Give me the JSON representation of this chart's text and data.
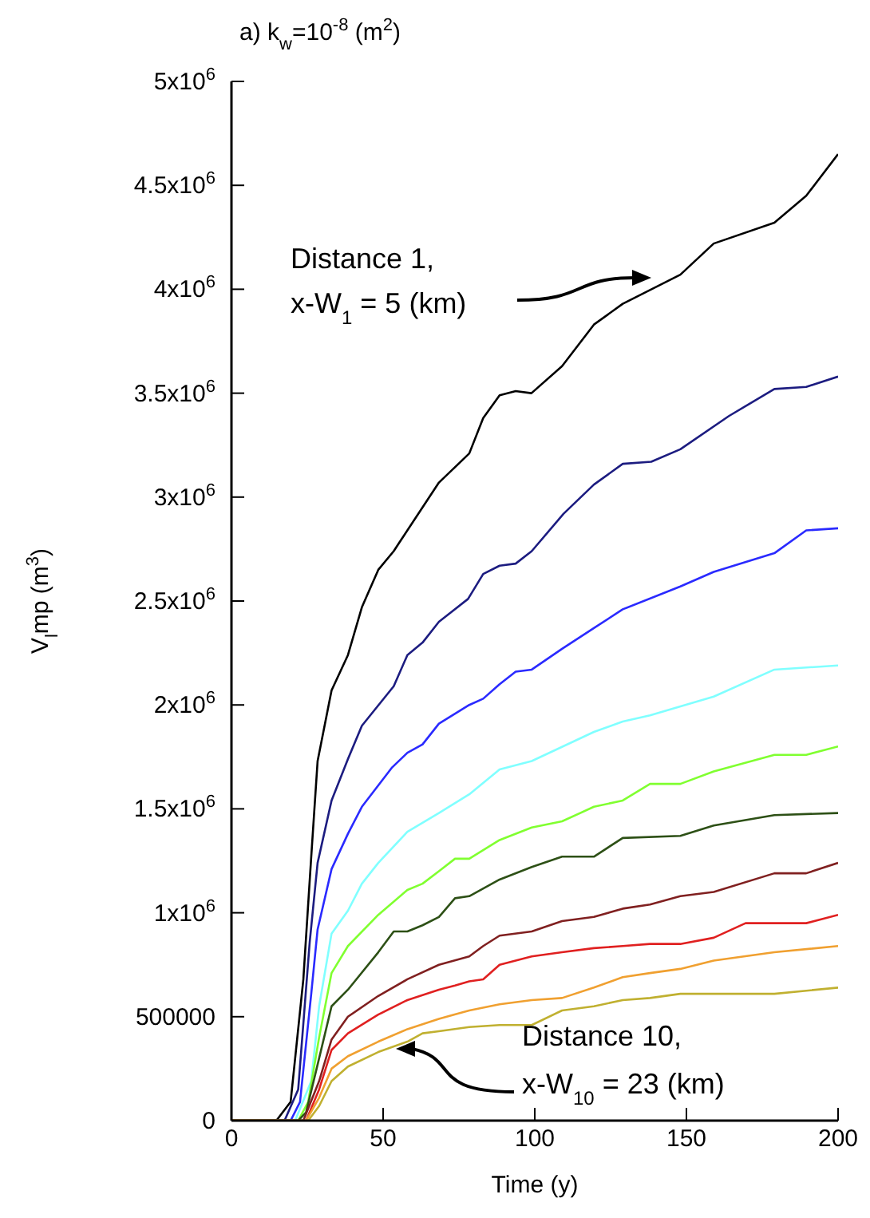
{
  "chart_data": {
    "type": "line",
    "title": "a) k$_{w}$=10$^{-8}$ (m$^{2}$)",
    "xlabel": "Time (y)",
    "ylabel": "V$_{l}$mp (m$^{3}$)",
    "xlim": [
      0,
      200
    ],
    "xticks": [
      0,
      50,
      100,
      150,
      200
    ],
    "ylim": [
      0,
      5000000
    ],
    "yticks": [
      0,
      500000,
      {
        "value": 1000000,
        "label": "1x10$^{6}$"
      },
      {
        "value": 1500000,
        "label": "1.5x10$^{6}$"
      },
      {
        "value": 2000000,
        "label": "2x10$^{6}$"
      },
      {
        "value": 2500000,
        "label": "2.5x10$^{6}$"
      },
      {
        "value": 3000000,
        "label": "3x10$^{6}$"
      },
      {
        "value": 3500000,
        "label": "3.5x10$^{6}$"
      },
      {
        "value": 4000000,
        "label": "4x10$^{6}$"
      },
      {
        "value": 4500000,
        "label": "4.5x10$^{6}$"
      },
      {
        "value": 5000000,
        "label": "5x10$^{6}$"
      }
    ],
    "grid": false,
    "legend": false,
    "marker": "none",
    "line_style": "solid",
    "annotations": [
      "Distance 1,\nx-W$_{1}$ = 5 (km)",
      "Distance 10,\nx-W$_{10}$ = 23 (km)"
    ],
    "series": [
      {
        "color": "#000000",
        "x": [
          0,
          14.8,
          19.5,
          23.7,
          26.3,
          28.4,
          33,
          38.4,
          43,
          48.4,
          53.5,
          55.3,
          68.4,
          78.4,
          83,
          88.4,
          93.7,
          98.9,
          109,
          119.5,
          129,
          148,
          159,
          179,
          189.5,
          200
        ],
        "values": [
          0,
          0,
          90000,
          680000,
          1270000,
          1730000,
          2070000,
          2240000,
          2470000,
          2650000,
          2740000,
          2780000,
          3070000,
          3210000,
          3380000,
          3490000,
          3510000,
          3500000,
          3630000,
          3830000,
          3930000,
          4070000,
          4220000,
          4320000,
          4450000,
          4650000
        ]
      },
      {
        "color": "#1c1c80",
        "x": [
          0,
          17.5,
          22,
          25.8,
          28.4,
          33,
          38.4,
          43,
          53.5,
          58,
          63,
          68.4,
          78,
          83,
          88.4,
          93.7,
          99,
          109.5,
          119.5,
          129,
          138.4,
          148,
          164,
          179,
          189.5,
          200
        ],
        "values": [
          0,
          0,
          150000,
          860000,
          1240000,
          1540000,
          1740000,
          1900000,
          2090000,
          2240000,
          2300000,
          2400000,
          2510000,
          2630000,
          2670000,
          2680000,
          2740000,
          2920000,
          3060000,
          3160000,
          3170000,
          3230000,
          3390000,
          3520000,
          3530000,
          3580000
        ]
      },
      {
        "color": "#2a2aff",
        "x": [
          0,
          19.5,
          22.6,
          26.3,
          28.4,
          33,
          38.4,
          43,
          53,
          58,
          63,
          68.4,
          78.4,
          83,
          88.4,
          93.7,
          99,
          109,
          119.5,
          129,
          148,
          159,
          179,
          189.5,
          200
        ],
        "values": [
          0,
          0,
          90000,
          610000,
          920000,
          1210000,
          1380000,
          1510000,
          1700000,
          1770000,
          1810000,
          1910000,
          2000000,
          2030000,
          2100000,
          2160000,
          2170000,
          2270000,
          2370000,
          2460000,
          2570000,
          2640000,
          2730000,
          2840000,
          2850000
        ]
      },
      {
        "color": "#80ffff",
        "x": [
          0,
          21,
          26.3,
          28.9,
          33,
          38.4,
          43,
          48.4,
          58,
          68.4,
          78.4,
          88.4,
          99,
          119.5,
          129,
          138,
          159,
          179,
          200
        ],
        "values": [
          0,
          0,
          190000,
          550000,
          900000,
          1010000,
          1140000,
          1240000,
          1390000,
          1480000,
          1570000,
          1690000,
          1730000,
          1870000,
          1920000,
          1950000,
          2040000,
          2170000,
          2190000
        ]
      },
      {
        "color": "#80ff30",
        "x": [
          0,
          22,
          25.3,
          28.9,
          33,
          38.4,
          48.4,
          58,
          63,
          68.4,
          73.7,
          78.4,
          88.4,
          99,
          109,
          119.5,
          129,
          138,
          148,
          159,
          179,
          189.5,
          200
        ],
        "values": [
          0,
          0,
          90000,
          400000,
          710000,
          840000,
          990000,
          1110000,
          1140000,
          1200000,
          1260000,
          1260000,
          1350000,
          1410000,
          1440000,
          1510000,
          1540000,
          1620000,
          1620000,
          1680000,
          1760000,
          1760000,
          1800000
        ]
      },
      {
        "color": "#2d5016",
        "x": [
          0,
          22,
          24.6,
          28.9,
          33,
          38.4,
          48.4,
          53.5,
          58,
          63,
          68.4,
          73.7,
          78.4,
          88.4,
          99,
          109,
          119.5,
          129,
          148,
          159,
          179,
          200
        ],
        "values": [
          0,
          0,
          40000,
          300000,
          550000,
          630000,
          810000,
          910000,
          910000,
          940000,
          980000,
          1070000,
          1080000,
          1160000,
          1220000,
          1270000,
          1270000,
          1360000,
          1370000,
          1420000,
          1470000,
          1480000
        ]
      },
      {
        "color": "#802020",
        "x": [
          0,
          23.7,
          28.9,
          33,
          38.4,
          48.4,
          58,
          68.4,
          78.4,
          83,
          88.4,
          99,
          109,
          119.5,
          129,
          138,
          148,
          159,
          179,
          189.5,
          200
        ],
        "values": [
          0,
          0,
          190000,
          390000,
          500000,
          600000,
          680000,
          750000,
          790000,
          840000,
          890000,
          910000,
          960000,
          980000,
          1020000,
          1040000,
          1080000,
          1100000,
          1190000,
          1190000,
          1240000
        ]
      },
      {
        "color": "#e02020",
        "x": [
          0,
          24.6,
          28.9,
          33,
          38.4,
          48.4,
          58,
          68.4,
          73.7,
          78.4,
          83,
          88.4,
          99,
          109,
          119.5,
          129,
          138,
          148,
          159,
          169.5,
          179,
          189.5,
          200
        ],
        "values": [
          0,
          0,
          150000,
          340000,
          420000,
          510000,
          580000,
          630000,
          650000,
          670000,
          680000,
          750000,
          790000,
          810000,
          830000,
          840000,
          850000,
          850000,
          880000,
          950000,
          950000,
          950000,
          990000
        ]
      },
      {
        "color": "#f0a030",
        "x": [
          0,
          24.6,
          28.9,
          33,
          38.4,
          48.4,
          58,
          68.4,
          78.4,
          88.4,
          99,
          109,
          119.5,
          129,
          138,
          148,
          159,
          179,
          200
        ],
        "values": [
          0,
          0,
          110000,
          250000,
          310000,
          380000,
          440000,
          490000,
          530000,
          560000,
          580000,
          590000,
          640000,
          690000,
          710000,
          730000,
          770000,
          810000,
          840000
        ]
      },
      {
        "color": "#c0b030",
        "x": [
          0,
          25.3,
          28.9,
          33,
          38.4,
          48.4,
          58,
          63,
          68.4,
          78.4,
          88.4,
          99,
          109,
          119.5,
          129,
          138,
          148,
          159,
          179,
          200
        ],
        "values": [
          0,
          0,
          70000,
          190000,
          260000,
          330000,
          380000,
          420000,
          430000,
          450000,
          460000,
          460000,
          530000,
          550000,
          580000,
          590000,
          610000,
          610000,
          610000,
          640000
        ]
      }
    ]
  }
}
